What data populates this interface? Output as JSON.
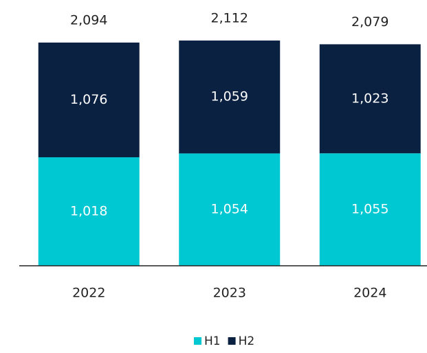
{
  "chart_data": {
    "type": "stacked_bar",
    "categories": [
      "2022",
      "2023",
      "2024"
    ],
    "series": [
      {
        "name": "H1",
        "color": "#00c8d2",
        "values": [
          1018,
          1054,
          1055
        ],
        "value_labels": [
          "1,018",
          "1,054",
          "1,055"
        ]
      },
      {
        "name": "H2",
        "color": "#0b2142",
        "values": [
          1076,
          1059,
          1023
        ],
        "value_labels": [
          "1,076",
          "1,059",
          "1,023"
        ]
      }
    ],
    "totals": [
      2094,
      2112,
      2079
    ],
    "total_labels": [
      "2,094",
      "2,112",
      "2,079"
    ],
    "ylim": [
      0,
      2300
    ],
    "legend": "bottom"
  }
}
